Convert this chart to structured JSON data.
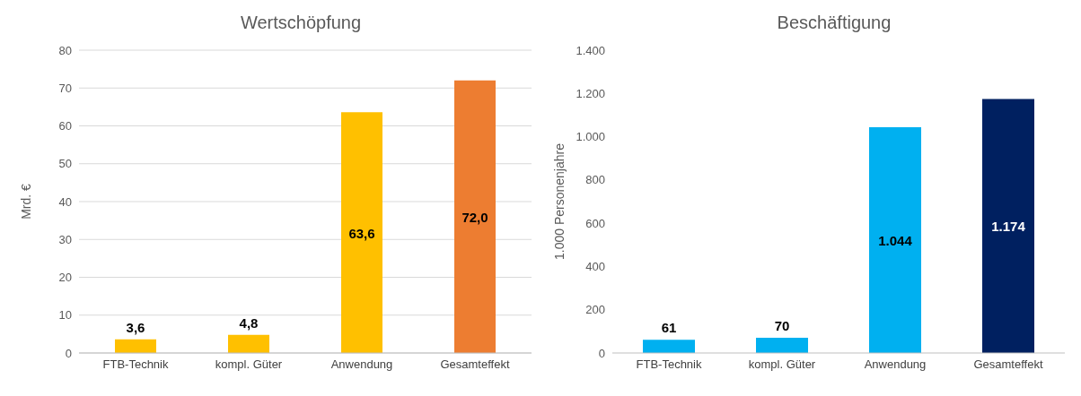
{
  "chart_data": [
    {
      "type": "bar",
      "title": "Wertschöpfung",
      "ylabel": "Mrd. €",
      "categories": [
        "FTB-Technik",
        "kompl. Güter",
        "Anwendung",
        "Gesamteffekt"
      ],
      "values": [
        3.6,
        4.8,
        63.6,
        72.0
      ],
      "colors": [
        "#ffc000",
        "#ffc000",
        "#ffc000",
        "#ed7d31"
      ],
      "value_labels": [
        "3,6",
        "4,8",
        "63,6",
        "72,0"
      ],
      "ylim": [
        0,
        80
      ],
      "yticks": [
        0,
        10,
        20,
        30,
        40,
        50,
        60,
        70,
        80
      ],
      "grid": "y"
    },
    {
      "type": "bar",
      "title": "Beschäftigung",
      "ylabel": "1.000 Personenjahre",
      "categories": [
        "FTB-Technik",
        "kompl. Güter",
        "Anwendung",
        "Gesamteffekt"
      ],
      "values": [
        61,
        70,
        1044,
        1174
      ],
      "colors": [
        "#00b0f0",
        "#00b0f0",
        "#00b0f0",
        "#002060"
      ],
      "value_labels": [
        "61",
        "70",
        "1.044",
        "1.174"
      ],
      "ylim": [
        0,
        1400
      ],
      "yticks": [
        0,
        200,
        400,
        600,
        800,
        {
          "value": 1000,
          "label": "1.000"
        },
        {
          "value": 1200,
          "label": "1.200"
        },
        {
          "value": 1400,
          "label": "1.400"
        }
      ],
      "grid": false
    }
  ]
}
